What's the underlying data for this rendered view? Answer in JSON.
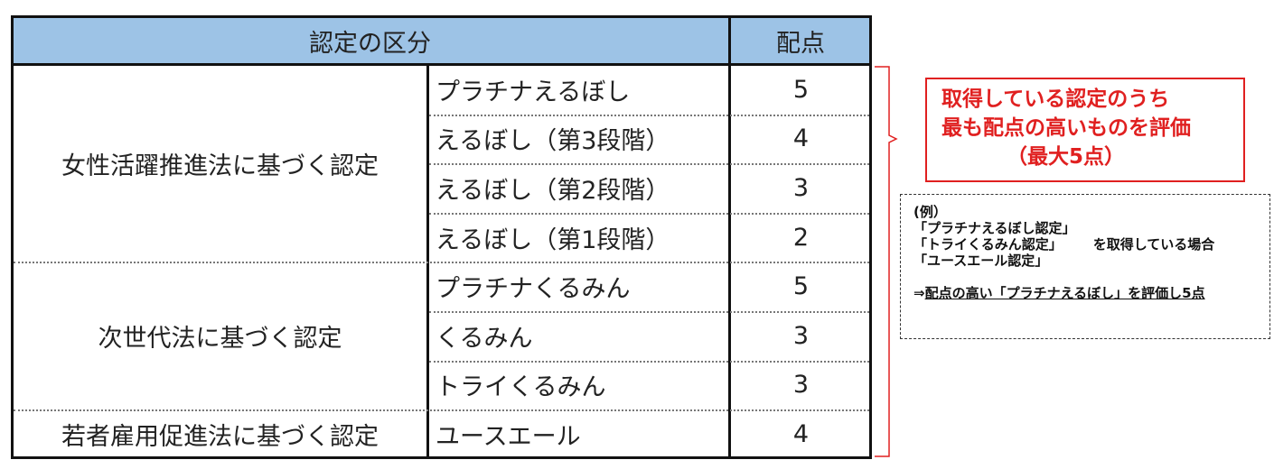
{
  "table": {
    "header": {
      "category": "認定の区分",
      "points": "配点"
    },
    "groups": [
      {
        "law": "女性活躍推進法に基づく認定",
        "rows": [
          {
            "name": "プラチナえるぼし",
            "points": "5"
          },
          {
            "name": "えるぼし（第3段階）",
            "points": "4"
          },
          {
            "name": "えるぼし（第2段階）",
            "points": "3"
          },
          {
            "name": "えるぼし（第1段階）",
            "points": "2"
          }
        ]
      },
      {
        "law": "次世代法に基づく認定",
        "rows": [
          {
            "name": "プラチナくるみん",
            "points": "5"
          },
          {
            "name": "くるみん",
            "points": "3"
          },
          {
            "name": "トライくるみん",
            "points": "3"
          }
        ]
      },
      {
        "law": "若者雇用促進法に基づく認定",
        "rows": [
          {
            "name": "ユースエール",
            "points": "4"
          }
        ]
      }
    ]
  },
  "note": {
    "line1": "取得している認定のうち",
    "line2": "最も配点の高いものを評価",
    "line3": "（最大5点）"
  },
  "example": {
    "title": "(例）",
    "item1": "「プラチナえるぼし認定」",
    "item2": "「トライくるみん認定」",
    "suffix": "を取得している場合",
    "item3": "「ユースエール認定」",
    "arrow": "⇒",
    "conclusion": "配点の高い「プラチナえるぼし」を評価し5点"
  },
  "colors": {
    "header": "#9dc3e6",
    "accent": "#e02020"
  }
}
